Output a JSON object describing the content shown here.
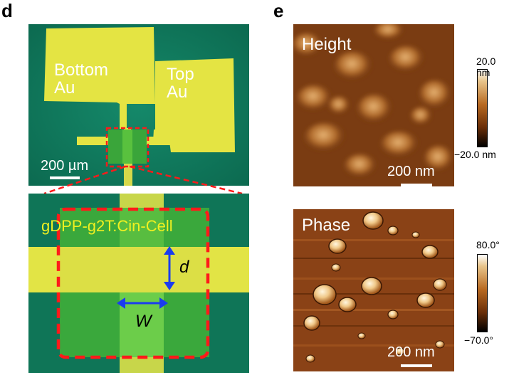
{
  "panel_d": {
    "letter": "d",
    "bottom_electrode_label": "Bottom\nAu",
    "top_electrode_label": "Top\nAu",
    "scale_bar_label": "200 µm",
    "device_label": "gDPP-g2T:Cin-Cell",
    "d_label": "d",
    "w_label": "W"
  },
  "panel_e": {
    "letter": "e",
    "height_image": {
      "label": "Height",
      "scale_bar_label": "200 nm",
      "colorbar_max": "20.0 nm",
      "colorbar_min": "−20.0 nm"
    },
    "phase_image": {
      "label": "Phase",
      "scale_bar_label": "200 nm",
      "colorbar_max": "80.0°",
      "colorbar_min": "−70.0°"
    }
  },
  "colors": {
    "substrate_green": "#0f7a5a",
    "gold_yellow": "#e6e64a",
    "film_green": "#4fb33a",
    "dashed_red": "#ff1a1a",
    "arrow_blue": "#1a3cf0",
    "afm_dark": "#5a2a08",
    "afm_light": "#d49a55"
  }
}
